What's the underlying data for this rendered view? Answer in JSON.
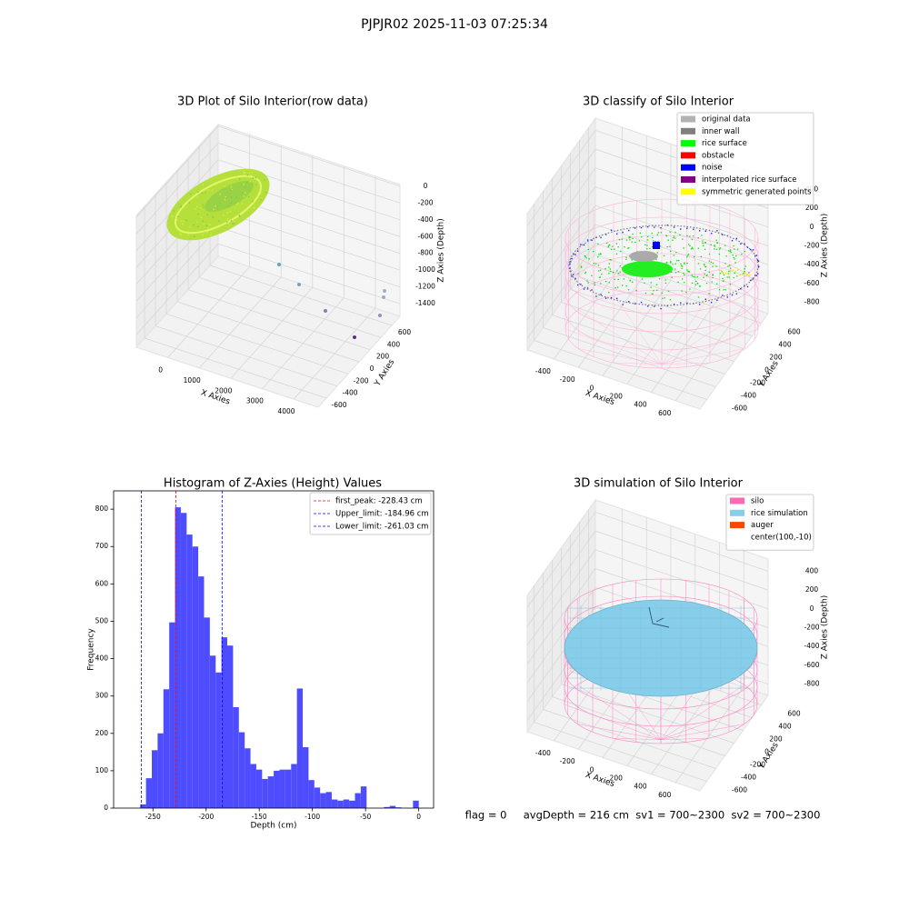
{
  "suptitle": "PJPJR02 2025-11-03 07:25:34",
  "footer": "flag = 0     avgDepth = 216 cm  sv1 = 700~2300  sv2 = 700~2300",
  "chart_data": [
    {
      "type": "scatter3d",
      "title": "3D Plot of Silo Interior(row data)",
      "xlabel": "X Axies",
      "ylabel": "Y Axies",
      "zlabel": "Z Axies (Depth)",
      "xlim": [
        -1000,
        4780
      ],
      "xticks": [
        0,
        1000,
        2000,
        3000,
        4000
      ],
      "ylim": [
        -750,
        750
      ],
      "yticks": [
        -600,
        -400,
        -200,
        0,
        200,
        400,
        600
      ],
      "zlim": [
        -1550,
        20
      ],
      "zticks": [
        -1400,
        -1200,
        -1000,
        -800,
        -600,
        -400,
        -200,
        0
      ]
    },
    {
      "type": "scatter3d",
      "title": "3D classify of Silo Interior",
      "xlabel": "X Axies",
      "ylabel": "Y Axies",
      "zlabel": "Z Axies (Depth)",
      "xlim": [
        -620,
        800
      ],
      "xticks": [
        -400,
        -200,
        0,
        200,
        400,
        600
      ],
      "ylim": [
        -750,
        750
      ],
      "yticks": [
        -600,
        -400,
        -200,
        0,
        200,
        400,
        600
      ],
      "zlim": [
        -920,
        530
      ],
      "zticks": [
        -800,
        -600,
        -400,
        -200,
        0,
        200,
        400
      ],
      "legend": "upper right",
      "legend_entries": [
        {
          "name": "original data",
          "color": "#b3b3b3"
        },
        {
          "name": "inner wall",
          "color": "#808080"
        },
        {
          "name": "rice surface",
          "color": "#00ff00"
        },
        {
          "name": "obstacle",
          "color": "#ff0000"
        },
        {
          "name": "noise",
          "color": "#0000ff"
        },
        {
          "name": "interpolated rice surface",
          "color": "#800080"
        },
        {
          "name": "symmetric generated points",
          "color": "#ffff00"
        }
      ]
    },
    {
      "type": "histogram",
      "title": "Histogram of Z-Axies (Height) Values",
      "xlabel": "Depth (cm)",
      "ylabel": "Frequency",
      "color": "#4d4dff",
      "bins": [
        -262,
        -256.54,
        -251.08,
        -245.62,
        -240.16,
        -234.7,
        -229.24,
        -223.78,
        -218.32,
        -212.86,
        -207.4,
        -201.94,
        -196.48,
        -191.02,
        -185.56,
        -180.1,
        -174.64,
        -169.18,
        -163.72,
        -158.26,
        -152.8,
        -147.34,
        -141.88,
        -136.42,
        -130.96,
        -125.5,
        -120.04,
        -114.58,
        -109.12,
        -103.66,
        -98.2,
        -92.74,
        -87.28,
        -81.82,
        -76.36,
        -70.9,
        -65.44,
        -59.98,
        -54.52,
        -49.06,
        -43.6,
        -38.14,
        -32.68,
        -27.22,
        -21.76,
        -16.3,
        -10.84,
        -5.38,
        0.08
      ],
      "counts": [
        10,
        80,
        155,
        200,
        318,
        497,
        805,
        790,
        732,
        700,
        620,
        510,
        408,
        363,
        457,
        435,
        270,
        203,
        160,
        118,
        103,
        78,
        85,
        100,
        103,
        103,
        118,
        320,
        163,
        75,
        55,
        40,
        43,
        23,
        20,
        23,
        20,
        40,
        58,
        0,
        0,
        0,
        3,
        6,
        2,
        0,
        0,
        20
      ],
      "xlim": [
        -287,
        14
      ],
      "xticks": [
        -250,
        -200,
        -150,
        -100,
        -50,
        0
      ],
      "ylim": [
        0,
        849
      ],
      "yticks": [
        0,
        100,
        200,
        300,
        400,
        500,
        600,
        700,
        800
      ],
      "legend": "upper right",
      "vlines": [
        {
          "name": "first_peak: -228.43 cm",
          "value": -228.43,
          "color": "#ff0000"
        },
        {
          "name": "Upper_limit: -184.96 cm",
          "value": -184.96,
          "color": "#0000ff"
        },
        {
          "name": "Lower_limit: -261.03 cm",
          "value": -261.03,
          "color": "#0000ff"
        }
      ]
    },
    {
      "type": "surface3d",
      "title": "3D simulation of Silo Interior",
      "xlabel": "X Axies",
      "ylabel": "Y Axies",
      "zlabel": "Z Axies (Depth)",
      "xlim": [
        -620,
        800
      ],
      "xticks": [
        -400,
        -200,
        0,
        200,
        400,
        600
      ],
      "ylim": [
        -750,
        750
      ],
      "yticks": [
        -600,
        -400,
        -200,
        0,
        200,
        400,
        600
      ],
      "zlim": [
        -920,
        530
      ],
      "zticks": [
        -800,
        -600,
        -400,
        -200,
        0,
        200,
        400
      ],
      "legend": "upper right",
      "legend_entries": [
        {
          "name": "silo",
          "color": "#ff69b4"
        },
        {
          "name": "rice simulation",
          "color": "#87ceeb"
        },
        {
          "name": "auger",
          "color": "#ff4500"
        },
        {
          "name": "center(100,-10)"
        }
      ]
    }
  ]
}
